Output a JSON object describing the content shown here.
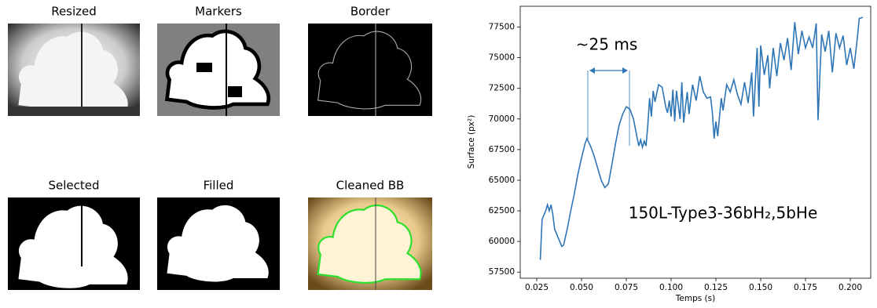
{
  "panels": [
    "Resized",
    "Markers",
    "Border",
    "Selected",
    "Filled",
    "Cleaned BB"
  ],
  "chart_data": {
    "type": "line",
    "xlabel": "Temps (s)",
    "ylabel": "Surface (px²)",
    "annotations": [
      "~25 ms",
      "150L-Type3-36bH₂,5bHe"
    ],
    "x": [
      0.027,
      0.028,
      0.03,
      0.031,
      0.032,
      0.033,
      0.034,
      0.035,
      0.037,
      0.039,
      0.04,
      0.042,
      0.044,
      0.046,
      0.048,
      0.05,
      0.052,
      0.053,
      0.055,
      0.057,
      0.059,
      0.061,
      0.063,
      0.065,
      0.067,
      0.069,
      0.071,
      0.073,
      0.075,
      0.077,
      0.079,
      0.081,
      0.082,
      0.083,
      0.084,
      0.085,
      0.086,
      0.087,
      0.088,
      0.089,
      0.09,
      0.091,
      0.093,
      0.095,
      0.097,
      0.098,
      0.099,
      0.1,
      0.101,
      0.102,
      0.103,
      0.105,
      0.106,
      0.107,
      0.109,
      0.11,
      0.112,
      0.114,
      0.116,
      0.118,
      0.12,
      0.122,
      0.123,
      0.124,
      0.125,
      0.126,
      0.128,
      0.129,
      0.131,
      0.133,
      0.135,
      0.137,
      0.139,
      0.141,
      0.143,
      0.145,
      0.146,
      0.148,
      0.149,
      0.15,
      0.152,
      0.154,
      0.155,
      0.157,
      0.159,
      0.161,
      0.163,
      0.165,
      0.167,
      0.169,
      0.171,
      0.173,
      0.175,
      0.177,
      0.179,
      0.181,
      0.182,
      0.184,
      0.186,
      0.188,
      0.19,
      0.192,
      0.194,
      0.196,
      0.198,
      0.2,
      0.202,
      0.204,
      0.205,
      0.207
    ],
    "series": [
      {
        "name": "Surface",
        "color": "#2e75b6",
        "values": [
          58500,
          61800,
          62500,
          63000,
          62500,
          63000,
          62200,
          61000,
          60300,
          59600,
          59700,
          61000,
          62500,
          63900,
          65500,
          66800,
          68000,
          68400,
          67800,
          67000,
          66000,
          65000,
          64400,
          64700,
          66300,
          68000,
          69500,
          70400,
          71000,
          70800,
          70000,
          68500,
          67800,
          68300,
          67700,
          68200,
          67800,
          69500,
          71700,
          70200,
          72300,
          71400,
          72800,
          72600,
          71000,
          70500,
          71500,
          70200,
          72400,
          69800,
          72300,
          70000,
          73000,
          69700,
          72200,
          70400,
          72800,
          71500,
          73500,
          72200,
          71700,
          71800,
          70600,
          68400,
          69800,
          68600,
          71700,
          70700,
          72800,
          72200,
          73200,
          72000,
          71200,
          73000,
          71300,
          73800,
          70200,
          75800,
          71000,
          76000,
          73600,
          75200,
          72500,
          75800,
          73500,
          76200,
          74800,
          76600,
          74000,
          77900,
          75300,
          77200,
          75800,
          76700,
          75800,
          77800,
          69900,
          76900,
          75500,
          77200,
          73800,
          77000,
          75800,
          76800,
          74400,
          75800,
          74100,
          76700,
          78200,
          78300
        ]
      }
    ],
    "xlim": [
      0.0158,
      0.2114
    ],
    "xticks": [
      0.025,
      {
        "value": 0.05,
        "label": "0.050"
      },
      0.075,
      {
        "value": 0.1,
        "label": "0.100"
      },
      0.125,
      {
        "value": 0.15,
        "label": "0.150"
      },
      0.175,
      {
        "value": 0.2,
        "label": "0.200"
      }
    ],
    "ylim": [
      57000,
      79200
    ],
    "yticks": [
      57500,
      60000,
      62500,
      65000,
      67500,
      70000,
      72500,
      75000,
      77500
    ],
    "grid": false
  }
}
